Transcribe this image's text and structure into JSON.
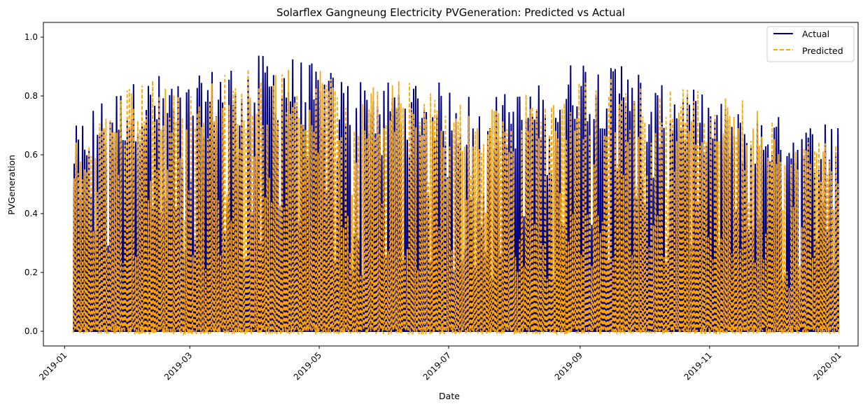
{
  "chart_data": {
    "type": "line",
    "title": "Solarflex Gangneung Electricity PVGeneration: Predicted vs Actual",
    "xlabel": "Date",
    "ylabel": "PVGeneration",
    "x_range": [
      "2018-12-22",
      "2020-01-10"
    ],
    "ylim": [
      -0.05,
      1.05
    ],
    "x_ticks": [
      "2019-01",
      "2019-03",
      "2019-05",
      "2019-07",
      "2019-09",
      "2019-11",
      "2020-01"
    ],
    "y_ticks": [
      "0.0",
      "0.2",
      "0.4",
      "0.6",
      "0.8",
      "1.0"
    ],
    "grid": false,
    "legend_position": "top-right",
    "series": [
      {
        "name": "Actual",
        "color": "#000080",
        "style": "solid",
        "x": [
          "2019-01-05",
          "2019-01-15",
          "2019-02-01",
          "2019-02-15",
          "2019-03-01",
          "2019-03-15",
          "2019-04-01",
          "2019-04-15",
          "2019-05-01",
          "2019-05-15",
          "2019-06-01",
          "2019-06-15",
          "2019-07-01",
          "2019-07-15",
          "2019-08-01",
          "2019-08-15",
          "2019-09-01",
          "2019-09-15",
          "2019-09-25",
          "2019-10-01",
          "2019-10-15",
          "2019-11-01",
          "2019-11-15",
          "2019-12-01",
          "2019-12-15",
          "2019-12-31"
        ],
        "daily_peak": [
          0.69,
          0.79,
          0.85,
          0.88,
          0.85,
          0.92,
          0.94,
          0.95,
          0.9,
          0.87,
          0.86,
          0.87,
          0.84,
          0.8,
          0.82,
          0.85,
          0.95,
          0.9,
          1.0,
          0.82,
          0.85,
          0.8,
          0.75,
          0.74,
          0.7,
          0.75
        ]
      },
      {
        "name": "Predicted",
        "color": "#ffa500",
        "style": "dashed",
        "x": [
          "2019-01-05",
          "2019-01-15",
          "2019-02-01",
          "2019-02-15",
          "2019-03-01",
          "2019-03-15",
          "2019-04-01",
          "2019-04-15",
          "2019-05-01",
          "2019-05-15",
          "2019-06-01",
          "2019-06-15",
          "2019-07-01",
          "2019-07-15",
          "2019-08-01",
          "2019-08-15",
          "2019-09-01",
          "2019-09-15",
          "2019-09-25",
          "2019-10-01",
          "2019-10-15",
          "2019-11-01",
          "2019-11-15",
          "2019-12-01",
          "2019-12-15",
          "2019-12-31"
        ],
        "daily_peak": [
          0.66,
          0.72,
          0.86,
          0.85,
          0.84,
          0.9,
          0.91,
          0.9,
          0.89,
          0.85,
          0.85,
          0.86,
          0.82,
          0.78,
          0.8,
          0.84,
          0.86,
          0.88,
          0.85,
          0.82,
          0.85,
          0.83,
          0.8,
          0.72,
          0.68,
          0.64
        ]
      }
    ]
  }
}
